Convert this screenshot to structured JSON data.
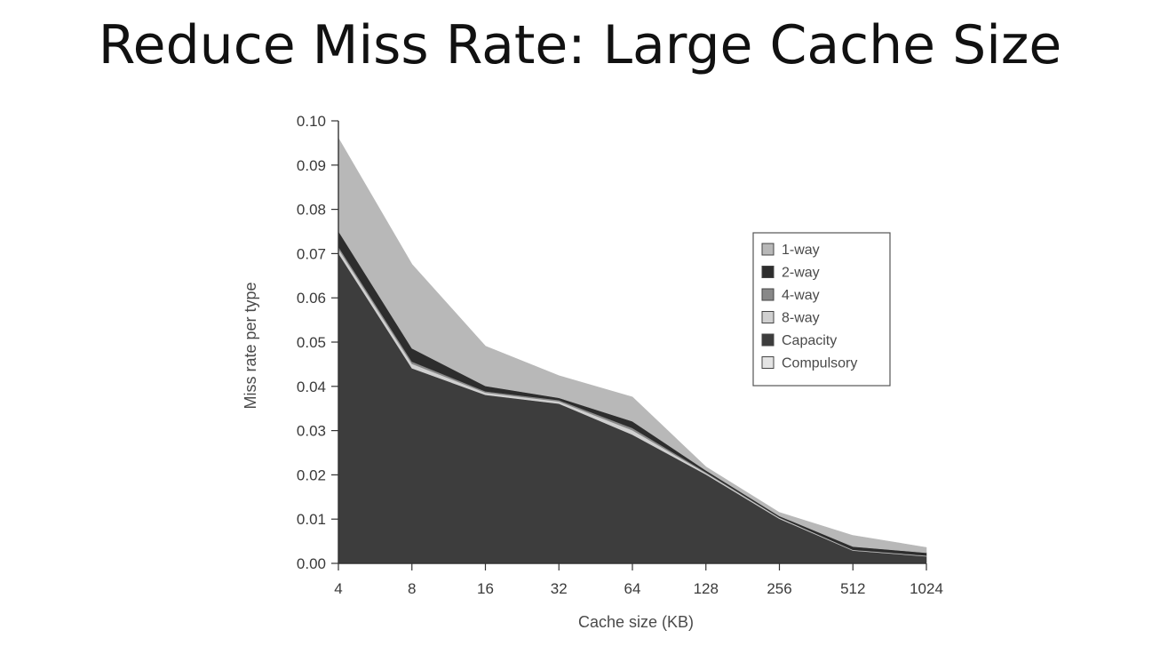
{
  "slide": {
    "title": "Reduce Miss Rate: Large Cache Size"
  },
  "chart_data": {
    "type": "area",
    "stacked": true,
    "xlabel": "Cache size (KB)",
    "ylabel": "Miss rate per type",
    "categories": [
      "4",
      "8",
      "16",
      "32",
      "64",
      "128",
      "256",
      "512",
      "1024"
    ],
    "ylim": [
      0,
      0.1
    ],
    "yticks": [
      "0.00",
      "0.01",
      "0.02",
      "0.03",
      "0.04",
      "0.05",
      "0.06",
      "0.07",
      "0.08",
      "0.09",
      "0.10"
    ],
    "legend_position": "right",
    "series": [
      {
        "name": "Compulsory",
        "color": "#e4e4e4",
        "values": [
          0.0001,
          0.0001,
          0.0001,
          0.0001,
          0.0001,
          0.0001,
          0.0001,
          0.0001,
          0.0001
        ]
      },
      {
        "name": "Capacity",
        "color": "#3d3d3d",
        "values": [
          0.07,
          0.044,
          0.038,
          0.036,
          0.029,
          0.02,
          0.01,
          0.0028,
          0.0015
        ]
      },
      {
        "name": "8-way",
        "color": "#d0d0d0",
        "values": [
          0.001,
          0.001,
          0.0005,
          0.0005,
          0.001,
          0.0003,
          0.0002,
          0.0001,
          0.0001
        ]
      },
      {
        "name": "4-way",
        "color": "#888888",
        "values": [
          0.0005,
          0.0005,
          0.0003,
          0.0003,
          0.0005,
          0.0002,
          0.0001,
          0.0001,
          0.0001
        ]
      },
      {
        "name": "2-way",
        "color": "#2d2d2d",
        "values": [
          0.0035,
          0.003,
          0.0012,
          0.0005,
          0.0015,
          0.0004,
          0.0003,
          0.0007,
          0.0006
        ]
      },
      {
        "name": "1-way",
        "color": "#b8b8b8",
        "values": [
          0.021,
          0.019,
          0.009,
          0.005,
          0.0055,
          0.0008,
          0.0008,
          0.0025,
          0.0012
        ]
      }
    ],
    "legend_order": [
      "1-way",
      "2-way",
      "4-way",
      "8-way",
      "Capacity",
      "Compulsory"
    ]
  }
}
